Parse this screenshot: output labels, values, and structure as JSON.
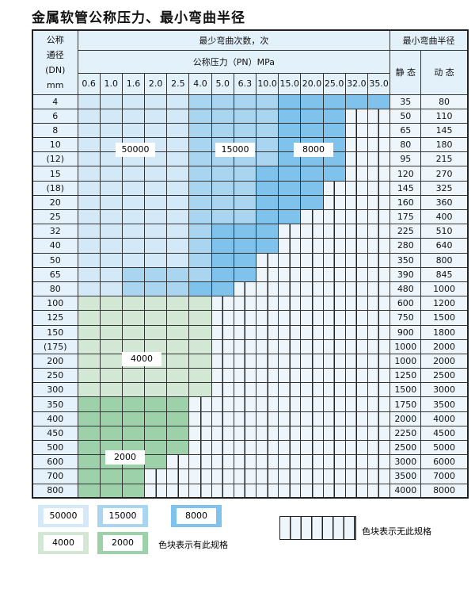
{
  "title": "金属软管公称压力、最小弯曲半径",
  "header": {
    "dn_label": [
      "公称",
      "通径",
      "(DN)",
      "mm"
    ],
    "cycles_label": "最少弯曲次数，次",
    "pressure_label": "公称压力（PN）MPa",
    "radius_label": "最小弯曲半径",
    "static_label": "静 态",
    "dynamic_label": "动 态",
    "pressures": [
      "0.6",
      "1.0",
      "1.6",
      "2.0",
      "2.5",
      "4.0",
      "5.0",
      "6.3",
      "10.0",
      "15.0",
      "20.0",
      "25.0",
      "32.0",
      "35.0"
    ]
  },
  "categories": {
    "A": {
      "value": "50000",
      "color": "#d4e9f8"
    },
    "B": {
      "value": "15000",
      "color": "#aad5f1"
    },
    "C": {
      "value": "8000",
      "color": "#7fc2ec"
    },
    "D": {
      "value": "4000",
      "color": "#d3e8d4"
    },
    "E": {
      "value": "2000",
      "color": "#9cd1aa"
    },
    "X": {
      "value": "无此规格",
      "color": "#eef5fb"
    }
  },
  "rows": [
    {
      "dn": "4",
      "static": "35",
      "dynamic": "80",
      "cells": "AAAAABBBBCCCCC"
    },
    {
      "dn": "6",
      "static": "50",
      "dynamic": "110",
      "cells": "AAAAABBBBCCCXX"
    },
    {
      "dn": "8",
      "static": "65",
      "dynamic": "145",
      "cells": "AAAAABBBBCCCXX"
    },
    {
      "dn": "10",
      "static": "80",
      "dynamic": "180",
      "cells": "AAAAABBBBCCCXX"
    },
    {
      "dn": "(12)",
      "static": "95",
      "dynamic": "215",
      "cells": "AAAAABBBBCCCXX"
    },
    {
      "dn": "15",
      "static": "120",
      "dynamic": "270",
      "cells": "AAAAABBBCCCCXX"
    },
    {
      "dn": "(18)",
      "static": "145",
      "dynamic": "325",
      "cells": "AAAAABBBCCCXXX"
    },
    {
      "dn": "20",
      "static": "160",
      "dynamic": "360",
      "cells": "AAAAABBBCCCXXX"
    },
    {
      "dn": "25",
      "static": "175",
      "dynamic": "400",
      "cells": "AAAAABBBCCXXXX"
    },
    {
      "dn": "32",
      "static": "225",
      "dynamic": "510",
      "cells": "AAAAABCCCXXXXX"
    },
    {
      "dn": "40",
      "static": "280",
      "dynamic": "640",
      "cells": "AAAAABCCCXXXXX"
    },
    {
      "dn": "50",
      "static": "350",
      "dynamic": "800",
      "cells": "AAAAABCCXXXXXX"
    },
    {
      "dn": "65",
      "static": "390",
      "dynamic": "845",
      "cells": "AABBBBCCXXXXXX"
    },
    {
      "dn": "80",
      "static": "480",
      "dynamic": "1000",
      "cells": "AABBBCCXXXXXXX"
    },
    {
      "dn": "100",
      "static": "600",
      "dynamic": "1200",
      "cells": "DDDDDDXXXXXXXX"
    },
    {
      "dn": "125",
      "static": "750",
      "dynamic": "1500",
      "cells": "DDDDDDXXXXXXXX"
    },
    {
      "dn": "150",
      "static": "900",
      "dynamic": "1800",
      "cells": "DDDDDDXXXXXXXX"
    },
    {
      "dn": "(175)",
      "static": "1000",
      "dynamic": "2000",
      "cells": "DDDDDDXXXXXXXX"
    },
    {
      "dn": "200",
      "static": "1000",
      "dynamic": "2000",
      "cells": "DDDDDDXXXXXXXX"
    },
    {
      "dn": "250",
      "static": "1250",
      "dynamic": "2500",
      "cells": "DDDDDDXXXXXXXX"
    },
    {
      "dn": "300",
      "static": "1500",
      "dynamic": "3000",
      "cells": "DDDDDDXXXXXXXX"
    },
    {
      "dn": "350",
      "static": "1750",
      "dynamic": "3500",
      "cells": "EEEEEXXXXXXXXX"
    },
    {
      "dn": "400",
      "static": "2000",
      "dynamic": "4000",
      "cells": "EEEEEXXXXXXXXX"
    },
    {
      "dn": "450",
      "static": "2250",
      "dynamic": "4500",
      "cells": "EEEEEXXXXXXXXX"
    },
    {
      "dn": "500",
      "static": "2500",
      "dynamic": "5000",
      "cells": "EEEEEXXXXXXXXX"
    },
    {
      "dn": "600",
      "static": "3000",
      "dynamic": "6000",
      "cells": "EEEEXXXXXXXXXX"
    },
    {
      "dn": "700",
      "static": "3500",
      "dynamic": "7000",
      "cells": "EEEXXXXXXXXXXX"
    },
    {
      "dn": "800",
      "static": "4000",
      "dynamic": "8000",
      "cells": "EEEXXXXXXXXXXX"
    }
  ],
  "region_labels": {
    "a": "50000",
    "b": "15000",
    "c": "8000",
    "d": "4000",
    "e": "2000"
  },
  "legend": {
    "a": "50000",
    "b": "15000",
    "c": "8000",
    "d": "4000",
    "e": "2000",
    "has_spec": "色块表示有此规格",
    "no_spec": "色块表示无此规格"
  }
}
